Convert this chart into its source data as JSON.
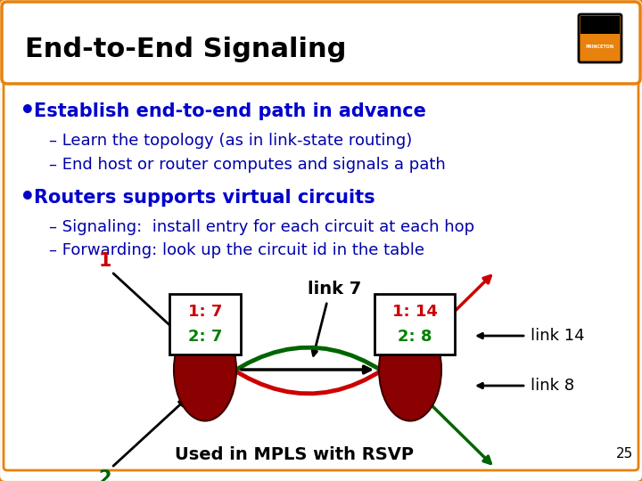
{
  "title": "End-to-End Signaling",
  "title_color": "#000000",
  "title_fontsize": 22,
  "bg_color": "#ffffff",
  "border_color": "#E8820C",
  "bullet1": "Establish end-to-end path in advance",
  "sub1a": "– Learn the topology (as in link-state routing)",
  "sub1b": "– End host or router computes and signals a path",
  "bullet2": "Routers supports virtual circuits",
  "sub2a": "– Signaling:  install entry for each circuit at each hop",
  "sub2b": "– Forwarding: look up the circuit id in the table",
  "bullet_color": "#0000CC",
  "sub_color": "#0000AA",
  "node_color": "#8B0000",
  "link7_label": "link 7",
  "link14_label": "link 14",
  "link8_label": "link 8",
  "green_color": "#006400",
  "red_color": "#CC0000",
  "footer_text": "Used in MPLS with RSVP",
  "slide_number": "25",
  "table_num_color1": "#CC0000",
  "table_num_color2": "#008000"
}
